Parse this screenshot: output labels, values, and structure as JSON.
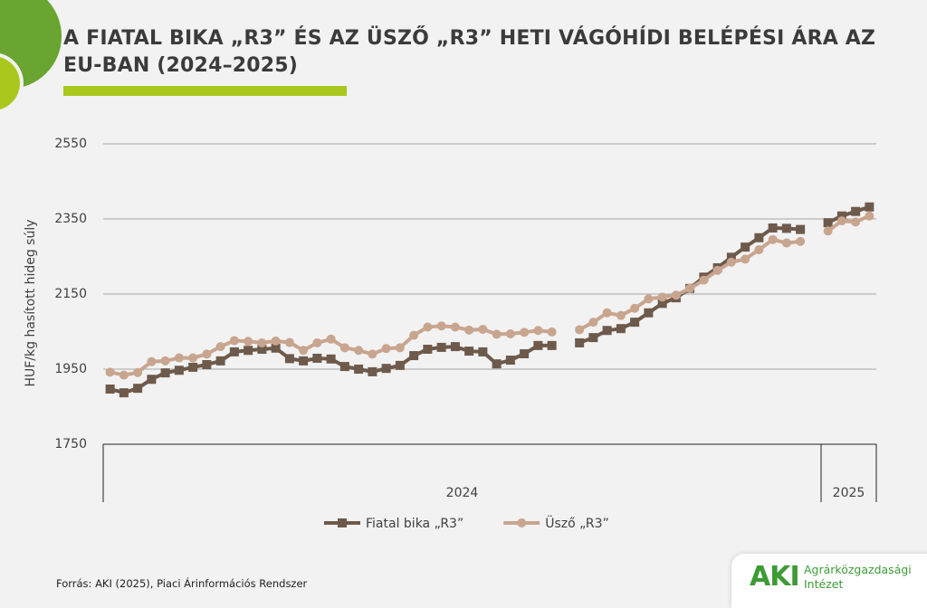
{
  "chart_data": {
    "type": "line",
    "title": "A FIATAL BIKA „R3” ÉS AZ ÜSZŐ „R3” HETI VÁGÓHÍDI BELÉPÉSI ÁRA AZ EU-BAN (2024–2025)",
    "y_label": "HUF/kg hasított hideg súly",
    "categories": [
      null,
      null,
      null,
      null,
      null,
      null,
      null,
      null,
      null,
      null,
      null,
      null,
      null,
      null,
      null,
      null,
      null,
      null,
      null,
      null,
      null,
      null,
      null,
      null,
      null,
      null,
      null,
      null,
      null,
      null,
      null,
      null,
      null,
      null,
      null,
      null,
      null,
      null,
      null,
      null,
      null,
      null,
      null,
      null,
      null,
      null,
      null,
      null,
      null,
      null,
      null,
      null,
      null,
      null,
      null,
      null
    ],
    "category_groups": [
      {
        "label": "2024",
        "start": 0,
        "end": 51
      },
      {
        "label": "2025",
        "start": 52,
        "end": 55
      }
    ],
    "ylim": [
      1750,
      2550
    ],
    "yticks": [
      1750,
      1950,
      2150,
      2350,
      2550
    ],
    "grid": true,
    "legend": "bottom",
    "series": [
      {
        "name": "Fiatal bika „R3”",
        "color": "#6e5a4b",
        "marker": "square",
        "values": [
          1897,
          1887,
          1899,
          1923,
          1940,
          1947,
          1955,
          1962,
          1972,
          1996,
          2000,
          2003,
          2006,
          1978,
          1972,
          1979,
          1977,
          1957,
          1950,
          1943,
          1952,
          1960,
          1986,
          2003,
          2008,
          2010,
          1998,
          1996,
          1964,
          1974,
          1991,
          2013,
          2013,
          null,
          2020,
          2034,
          2053,
          2058,
          2075,
          2100,
          2125,
          2140,
          2165,
          2195,
          2220,
          2248,
          2275,
          2300,
          2326,
          2325,
          2322,
          null,
          2340,
          2358,
          2370,
          2382
        ]
      },
      {
        "name": "Üsző „R3”",
        "color": "#c8a58f",
        "marker": "circle",
        "values": [
          1942,
          1934,
          1941,
          1970,
          1972,
          1980,
          1980,
          1990,
          2010,
          2026,
          2024,
          2020,
          2025,
          2021,
          2000,
          2020,
          2030,
          2007,
          2000,
          1990,
          2005,
          2007,
          2040,
          2062,
          2065,
          2062,
          2054,
          2056,
          2043,
          2044,
          2048,
          2053,
          2049,
          null,
          2055,
          2075,
          2100,
          2093,
          2112,
          2137,
          2142,
          2147,
          2165,
          2187,
          2213,
          2235,
          2243,
          2268,
          2295,
          2286,
          2290,
          null,
          2318,
          2345,
          2342,
          2358
        ]
      }
    ]
  },
  "source": "Forrás: AKI (2025), Piaci Árinformációs Rendszer",
  "logo": {
    "mark": "AKI",
    "lines": [
      "Agrárközgazdasági",
      "Intézet"
    ]
  }
}
